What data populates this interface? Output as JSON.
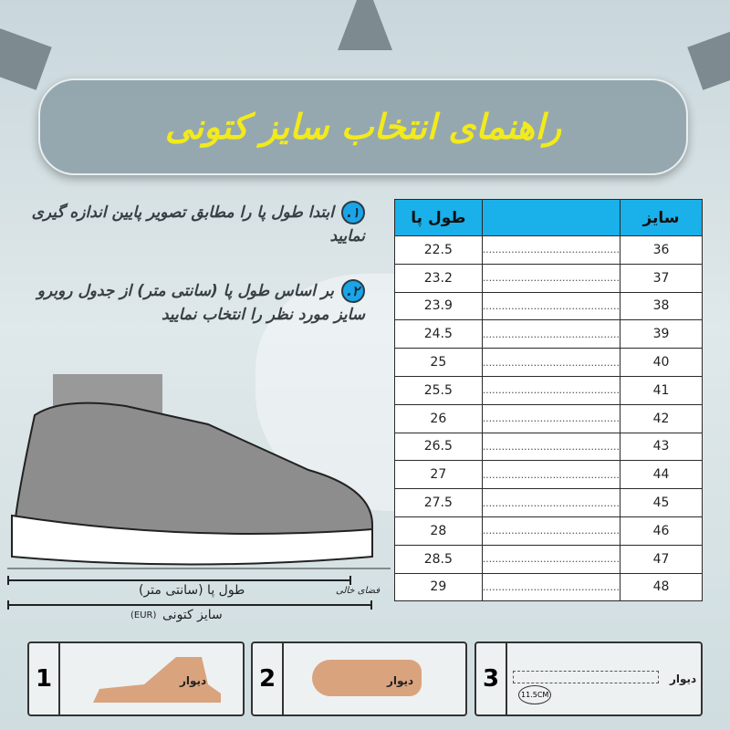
{
  "title": "راهنمای انتخاب سایز کتونی",
  "steps": [
    {
      "number": "۱.",
      "text": "ابتدا طول پا را مطابق تصویر پایین اندازه گیری نمایید"
    },
    {
      "number": "۲.",
      "text": "بر اساس طول پا (سانتی متر) از جدول روبرو سایز مورد نظر را انتخاب نمایید"
    }
  ],
  "table": {
    "headers": {
      "size": "سایز",
      "foot_length": "طول پا"
    },
    "dots": "...........................................",
    "rows": [
      {
        "size": "36",
        "length": "22.5"
      },
      {
        "size": "37",
        "length": "23.2"
      },
      {
        "size": "38",
        "length": "23.9"
      },
      {
        "size": "39",
        "length": "24.5"
      },
      {
        "size": "40",
        "length": "25"
      },
      {
        "size": "41",
        "length": "25.5"
      },
      {
        "size": "42",
        "length": "26"
      },
      {
        "size": "43",
        "length": "26.5"
      },
      {
        "size": "44",
        "length": "27"
      },
      {
        "size": "45",
        "length": "27.5"
      },
      {
        "size": "46",
        "length": "28"
      },
      {
        "size": "47",
        "length": "28.5"
      },
      {
        "size": "48",
        "length": "29"
      }
    ]
  },
  "diagram": {
    "foot_length": "طول پا (سانتی متر)",
    "empty_space": "فضای خالی",
    "shoe_size": "سایز کتونی",
    "eur": "(EUR)"
  },
  "panels": [
    {
      "number": "1",
      "wall": "دیوار"
    },
    {
      "number": "2",
      "wall": "دیوار"
    },
    {
      "number": "3",
      "wall": "دیوار",
      "measure": "11.5CM"
    }
  ],
  "colors": {
    "accent": "#1ab0ea",
    "title": "#f2ea1c"
  }
}
